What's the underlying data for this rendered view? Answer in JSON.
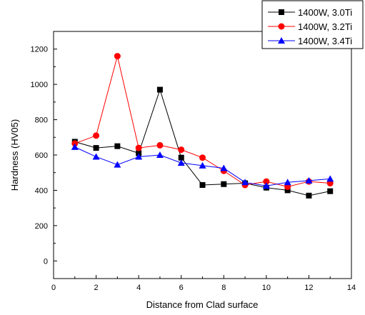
{
  "chart_data": {
    "type": "line",
    "xlabel": "Distance from Clad surface",
    "ylabel": "Hardness (HV05)",
    "xlim": [
      0,
      14
    ],
    "ylim": [
      -100,
      1300
    ],
    "x_ticks": [
      0,
      2,
      4,
      6,
      8,
      10,
      12,
      14
    ],
    "y_ticks": [
      0,
      200,
      400,
      600,
      800,
      1000,
      1200
    ],
    "x_tick_labels": [
      "0",
      "2",
      "4",
      "6",
      "8",
      "10",
      "12",
      "14"
    ],
    "y_tick_labels": [
      "0",
      "200",
      "400",
      "600",
      "800",
      "1000",
      "1200"
    ],
    "grid": false,
    "legend_position": "top-right",
    "x": [
      1,
      2,
      3,
      4,
      5,
      6,
      7,
      8,
      9,
      10,
      11,
      12,
      13
    ],
    "series": [
      {
        "name": "1400W, 3.0Ti",
        "color": "#000000",
        "marker": "square",
        "values": [
          675,
          640,
          650,
          610,
          970,
          585,
          430,
          435,
          440,
          415,
          400,
          370,
          395
        ]
      },
      {
        "name": "1400W, 3.2Ti",
        "color": "#ff0000",
        "marker": "circle",
        "values": [
          665,
          710,
          1160,
          640,
          655,
          630,
          585,
          510,
          430,
          450,
          420,
          450,
          440
        ]
      },
      {
        "name": "1400W, 3.4Ti",
        "color": "#0000ff",
        "marker": "triangle",
        "values": [
          645,
          590,
          545,
          590,
          600,
          555,
          540,
          525,
          445,
          425,
          445,
          455,
          465
        ]
      }
    ]
  }
}
